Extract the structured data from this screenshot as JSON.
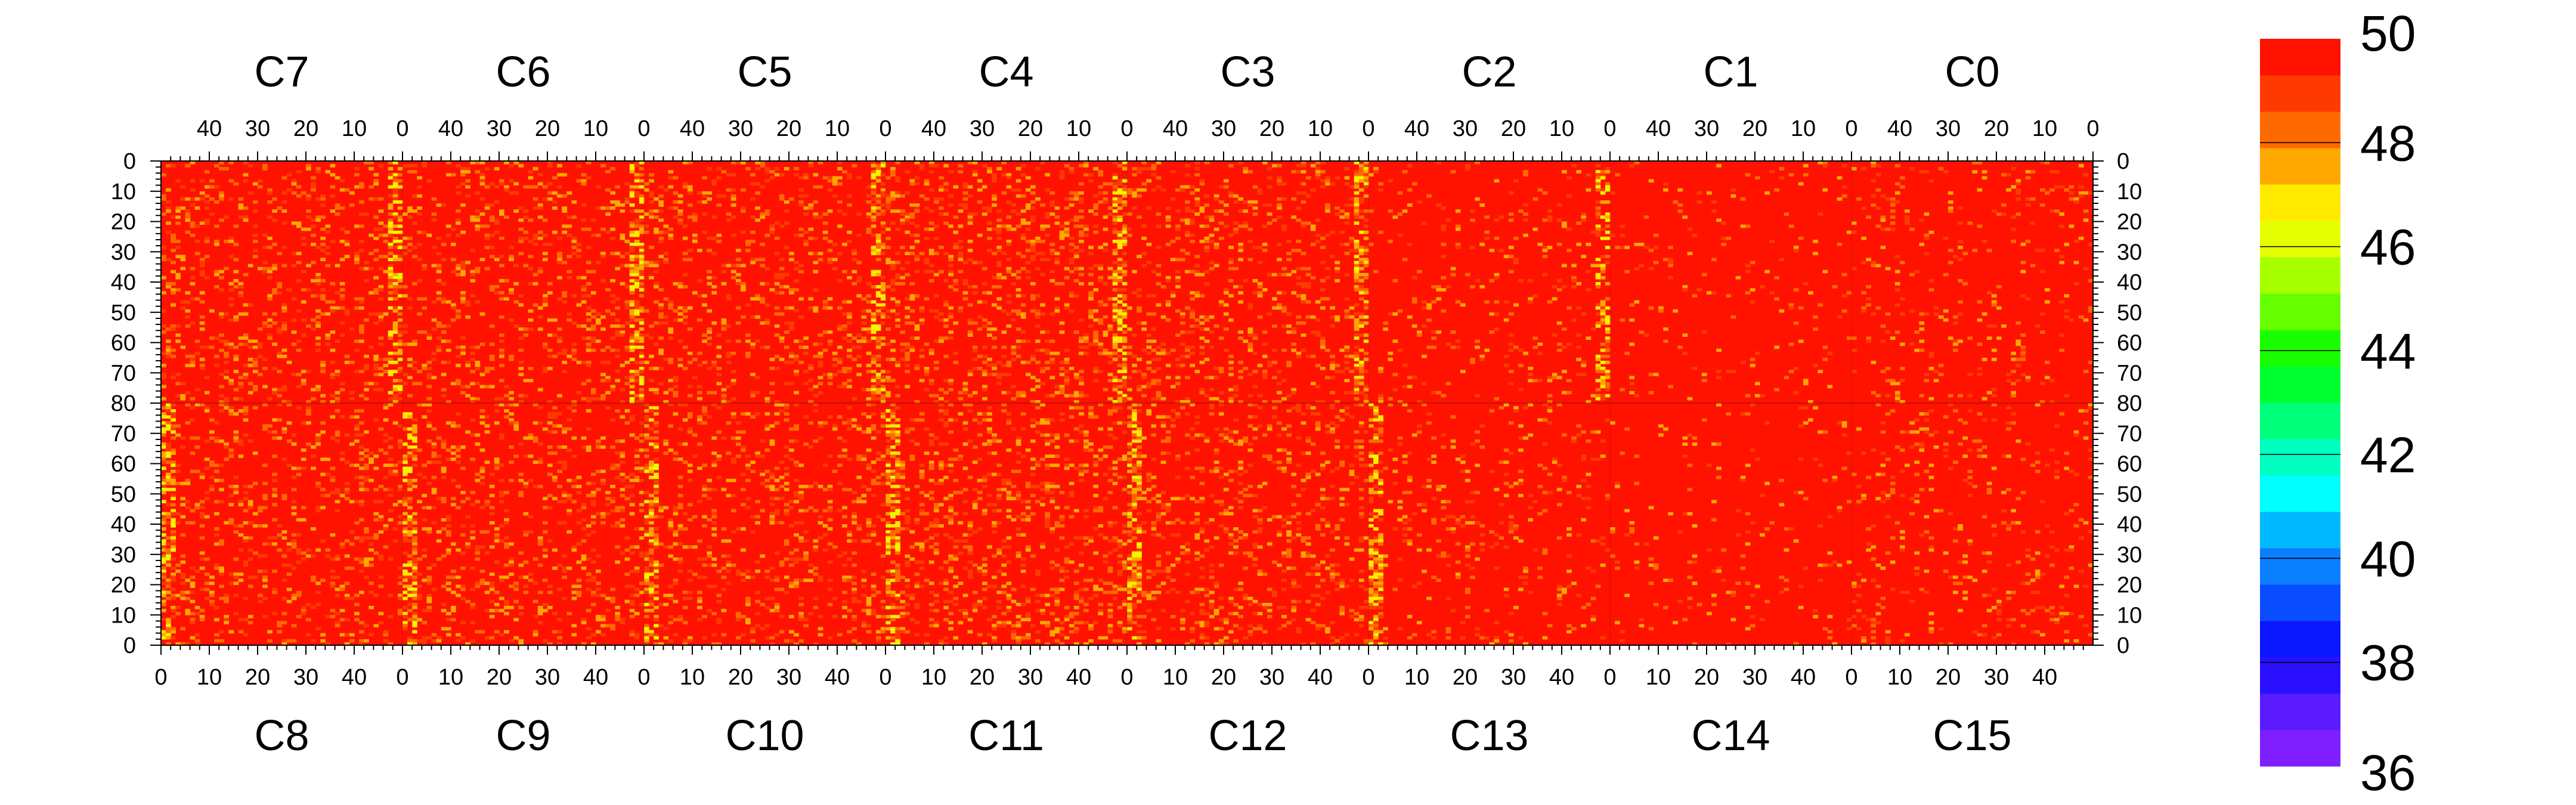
{
  "chart_data": {
    "type": "heatmap",
    "title": "",
    "top_panels": [
      "C7",
      "C6",
      "C5",
      "C4",
      "C3",
      "C2",
      "C1",
      "C0"
    ],
    "bottom_panels": [
      "C8",
      "C9",
      "C10",
      "C11",
      "C12",
      "C13",
      "C14",
      "C15"
    ],
    "top_x_ticks": [
      "40",
      "30",
      "20",
      "10",
      "0"
    ],
    "bottom_x_ticks": [
      "0",
      "10",
      "20",
      "30",
      "40"
    ],
    "x_tick_values_top": [
      40,
      30,
      20,
      10,
      0
    ],
    "x_tick_values_bottom": [
      0,
      10,
      20,
      30,
      40
    ],
    "x_range_per_panel": [
      0,
      50
    ],
    "y_ticks": [
      "0",
      "10",
      "20",
      "30",
      "40",
      "50",
      "60",
      "70",
      "80",
      "70",
      "60",
      "50",
      "40",
      "30",
      "20",
      "10",
      "0"
    ],
    "y_range": [
      0,
      160
    ],
    "mid_row": 80,
    "zlim": [
      36,
      50
    ],
    "colorbar_ticks": [
      "50",
      "48",
      "46",
      "44",
      "42",
      "40",
      "38",
      "36"
    ],
    "colorbar_tick_values": [
      50,
      48,
      46,
      44,
      42,
      40,
      38,
      36
    ],
    "colorscale": [
      "#7f1fff",
      "#5a1cff",
      "#2b10ff",
      "#0a17ff",
      "#0a4cff",
      "#0a7fff",
      "#00b8ff",
      "#00ffff",
      "#00ffc0",
      "#00ff7a",
      "#00ff30",
      "#1aff00",
      "#66ff00",
      "#a8ff00",
      "#e6ff00",
      "#ffea00",
      "#ffa800",
      "#ff6a00",
      "#ff3a00",
      "#ff1200"
    ],
    "dominant_value": 50,
    "panel_mean_values": {
      "C7": 49.6,
      "C6": 49.6,
      "C5": 49.6,
      "C4": 49.5,
      "C3": 49.6,
      "C2": 49.8,
      "C1": 49.9,
      "C0": 49.8,
      "C8": 49.6,
      "C9": 49.6,
      "C10": 49.6,
      "C11": 49.5,
      "C12": 49.6,
      "C13": 49.8,
      "C14": 49.9,
      "C15": 49.8
    },
    "hot_columns_note_value": 47
  }
}
